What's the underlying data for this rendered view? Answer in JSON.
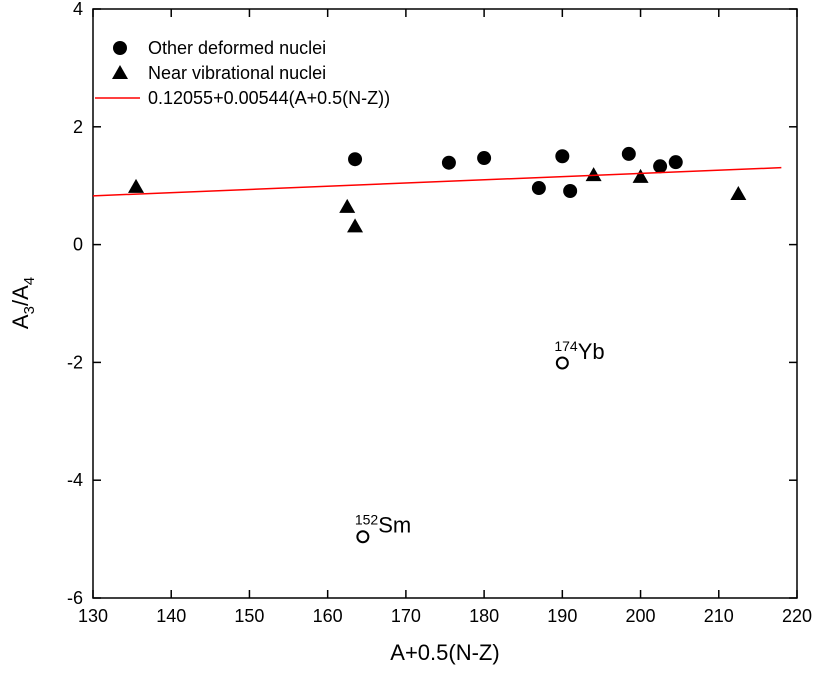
{
  "chart_data": {
    "type": "scatter",
    "xlabel": "A+0.5(N-Z)",
    "ylabel": {
      "parts": [
        "A",
        "3",
        "/A",
        "4"
      ]
    },
    "xlim": [
      130,
      220
    ],
    "xticks": [
      130,
      140,
      150,
      160,
      170,
      180,
      190,
      200,
      210,
      220
    ],
    "ylim": [
      -6,
      4
    ],
    "yticks": [
      -6,
      -4,
      -2,
      0,
      2,
      4
    ],
    "legend": "upper left",
    "series": [
      {
        "name": "Other deformed nuclei",
        "color": "#000000",
        "marker": "circle",
        "x": [
          163.5,
          175.5,
          180,
          187,
          190,
          191,
          198.5,
          202.5,
          204.5
        ],
        "values": [
          1.45,
          1.39,
          1.47,
          0.96,
          1.5,
          0.91,
          1.54,
          1.33,
          1.4
        ]
      },
      {
        "name": "Near vibrational nuclei",
        "color": "#000000",
        "marker": "triangle",
        "x": [
          135.5,
          162.5,
          163.5,
          194,
          200,
          212.5
        ],
        "values": [
          0.98,
          0.64,
          0.31,
          1.18,
          1.15,
          0.86
        ]
      },
      {
        "name": "0.12055+0.00544(A+0.5(N-Z))",
        "color": "#ff0000",
        "marker": "line",
        "x": [
          130,
          218
        ],
        "values": [
          0.82775,
          1.30647
        ]
      },
      {
        "color": "#000000",
        "marker": "open-circle",
        "x": [
          190,
          164.5
        ],
        "values": [
          -2.01,
          -4.96
        ],
        "point_labels": [
          {
            "sup": "174",
            "text": "Yb"
          },
          {
            "sup": "152",
            "text": "Sm"
          }
        ]
      }
    ]
  }
}
